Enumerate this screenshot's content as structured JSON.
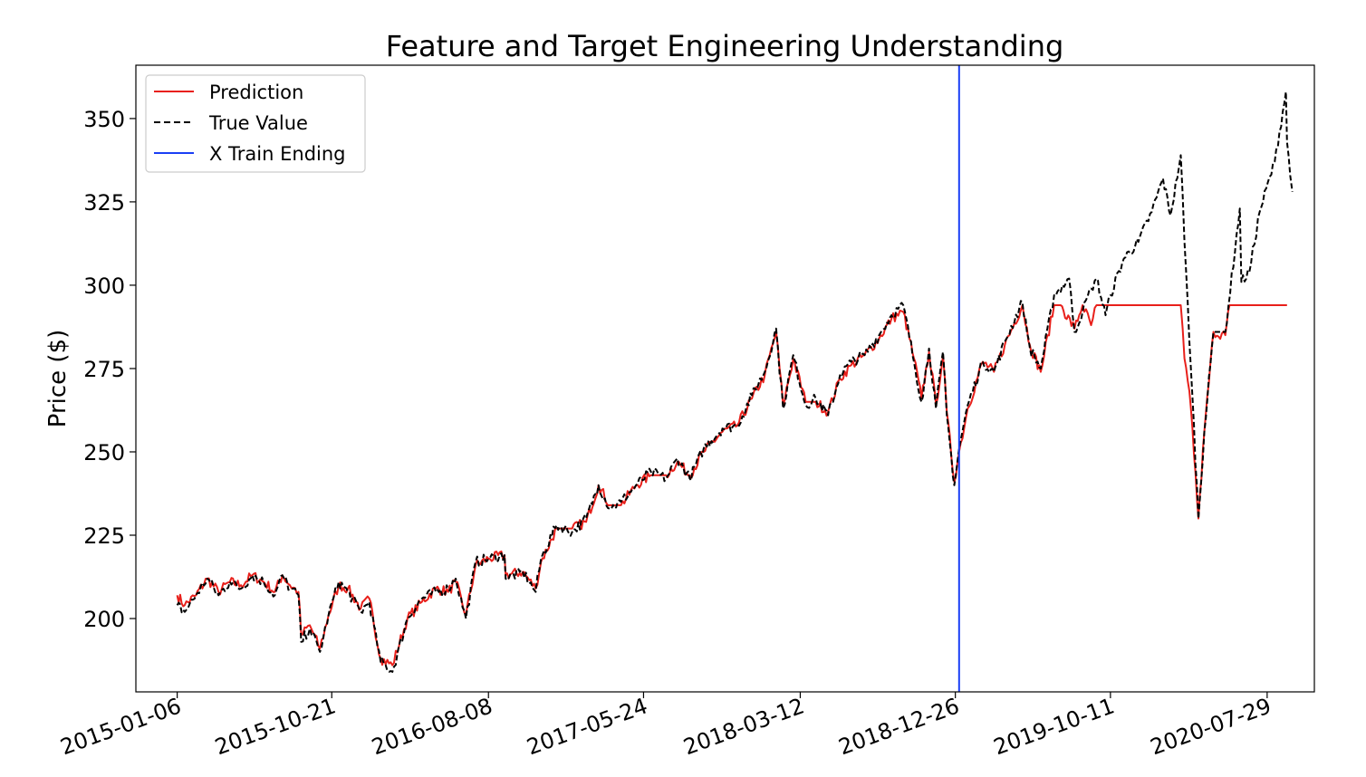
{
  "chart_data": {
    "type": "line",
    "title": "Feature and Target Engineering Understanding",
    "xlabel": "",
    "ylabel": "Price ($)",
    "x_start": "2015-01-06",
    "x_end": "2020-09-04",
    "xlim": [
      "2014-10-21",
      "2020-10-25"
    ],
    "ylim": [
      178,
      366
    ],
    "x_ticks": [
      "2015-01-06",
      "2015-10-21",
      "2016-08-08",
      "2017-05-24",
      "2018-03-12",
      "2018-12-26",
      "2019-10-11",
      "2020-07-29"
    ],
    "y_ticks": [
      200,
      225,
      250,
      275,
      300,
      325,
      350
    ],
    "grid": false,
    "legend_position": "upper-left",
    "train_end_date": "2019-01-02",
    "series": [
      {
        "name": "Prediction",
        "color": "#e8201b",
        "style": "solid",
        "points": [
          [
            "2015-01-06",
            207
          ],
          [
            "2015-01-20",
            204
          ],
          [
            "2015-02-10",
            207
          ],
          [
            "2015-03-03",
            212
          ],
          [
            "2015-03-24",
            208
          ],
          [
            "2015-04-14",
            211
          ],
          [
            "2015-05-05",
            210
          ],
          [
            "2015-05-26",
            213
          ],
          [
            "2015-06-16",
            211
          ],
          [
            "2015-07-07",
            208
          ],
          [
            "2015-07-21",
            213
          ],
          [
            "2015-08-04",
            210
          ],
          [
            "2015-08-20",
            208
          ],
          [
            "2015-08-25",
            195
          ],
          [
            "2015-09-10",
            198
          ],
          [
            "2015-09-29",
            191
          ],
          [
            "2015-10-15",
            201
          ],
          [
            "2015-11-03",
            210
          ],
          [
            "2015-11-20",
            209
          ],
          [
            "2015-12-14",
            203
          ],
          [
            "2015-12-30",
            206
          ],
          [
            "2016-01-20",
            188
          ],
          [
            "2016-02-11",
            186
          ],
          [
            "2016-03-10",
            200
          ],
          [
            "2016-04-06",
            205
          ],
          [
            "2016-05-02",
            209
          ],
          [
            "2016-05-25",
            208
          ],
          [
            "2016-06-08",
            211
          ],
          [
            "2016-06-27",
            201
          ],
          [
            "2016-07-15",
            216
          ],
          [
            "2016-08-08",
            218
          ],
          [
            "2016-09-07",
            219
          ],
          [
            "2016-09-09",
            213
          ],
          [
            "2016-10-11",
            214
          ],
          [
            "2016-11-04",
            209
          ],
          [
            "2016-11-14",
            217
          ],
          [
            "2016-12-13",
            227
          ],
          [
            "2017-01-11",
            227
          ],
          [
            "2017-02-06",
            229
          ],
          [
            "2017-03-01",
            240
          ],
          [
            "2017-03-22",
            234
          ],
          [
            "2017-04-12",
            234
          ],
          [
            "2017-05-10",
            240
          ],
          [
            "2017-06-07",
            243
          ],
          [
            "2017-07-05",
            243
          ],
          [
            "2017-07-26",
            247
          ],
          [
            "2017-08-18",
            243
          ],
          [
            "2017-09-13",
            250
          ],
          [
            "2017-10-18",
            256
          ],
          [
            "2017-11-15",
            258
          ],
          [
            "2017-12-12",
            266
          ],
          [
            "2018-01-05",
            273
          ],
          [
            "2018-01-26",
            286
          ],
          [
            "2018-02-08",
            264
          ],
          [
            "2018-02-27",
            278
          ],
          [
            "2018-03-22",
            265
          ],
          [
            "2018-04-10",
            265
          ],
          [
            "2018-05-03",
            262
          ],
          [
            "2018-05-25",
            272
          ],
          [
            "2018-06-15",
            276
          ],
          [
            "2018-07-10",
            279
          ],
          [
            "2018-08-06",
            284
          ],
          [
            "2018-08-29",
            290
          ],
          [
            "2018-09-20",
            292
          ],
          [
            "2018-10-10",
            278
          ],
          [
            "2018-10-24",
            266
          ],
          [
            "2018-11-07",
            280
          ],
          [
            "2018-11-20",
            264
          ],
          [
            "2018-12-03",
            279
          ],
          [
            "2018-12-10",
            262
          ],
          [
            "2018-12-24",
            241
          ],
          [
            "2019-01-02",
            250
          ],
          [
            "2019-01-18",
            263
          ],
          [
            "2019-02-15",
            277
          ],
          [
            "2019-03-08",
            274
          ],
          [
            "2019-03-28",
            282
          ],
          [
            "2019-04-30",
            294
          ],
          [
            "2019-05-14",
            282
          ],
          [
            "2019-06-03",
            274
          ],
          [
            "2019-06-28",
            294
          ],
          [
            "2019-07-10",
            294
          ],
          [
            "2019-08-05",
            287
          ],
          [
            "2019-08-20",
            294
          ],
          [
            "2019-09-05",
            288
          ],
          [
            "2019-09-15",
            294
          ],
          [
            "2020-02-19",
            294
          ],
          [
            "2020-02-26",
            278
          ],
          [
            "2020-03-09",
            263
          ],
          [
            "2020-03-23",
            230
          ],
          [
            "2020-04-03",
            256
          ],
          [
            "2020-04-20",
            286
          ],
          [
            "2020-05-12",
            285
          ],
          [
            "2020-05-20",
            294
          ],
          [
            "2020-09-04",
            294
          ]
        ]
      },
      {
        "name": "True Value",
        "color": "#000000",
        "style": "dashed",
        "points": [
          [
            "2015-01-06",
            204
          ],
          [
            "2015-01-20",
            202
          ],
          [
            "2015-02-10",
            207
          ],
          [
            "2015-03-03",
            212
          ],
          [
            "2015-03-24",
            207
          ],
          [
            "2015-04-14",
            211
          ],
          [
            "2015-05-05",
            209
          ],
          [
            "2015-05-26",
            213
          ],
          [
            "2015-06-16",
            211
          ],
          [
            "2015-07-07",
            207
          ],
          [
            "2015-07-21",
            213
          ],
          [
            "2015-08-04",
            209
          ],
          [
            "2015-08-20",
            207
          ],
          [
            "2015-08-25",
            193
          ],
          [
            "2015-09-10",
            197
          ],
          [
            "2015-09-29",
            190
          ],
          [
            "2015-10-15",
            201
          ],
          [
            "2015-11-03",
            211
          ],
          [
            "2015-11-20",
            208
          ],
          [
            "2015-12-14",
            202
          ],
          [
            "2015-12-30",
            205
          ],
          [
            "2016-01-20",
            187
          ],
          [
            "2016-02-11",
            184
          ],
          [
            "2016-03-10",
            200
          ],
          [
            "2016-04-06",
            206
          ],
          [
            "2016-05-02",
            208
          ],
          [
            "2016-05-25",
            209
          ],
          [
            "2016-06-08",
            212
          ],
          [
            "2016-06-27",
            200
          ],
          [
            "2016-07-15",
            217
          ],
          [
            "2016-08-08",
            218
          ],
          [
            "2016-09-07",
            219
          ],
          [
            "2016-09-09",
            212
          ],
          [
            "2016-10-11",
            214
          ],
          [
            "2016-11-04",
            208
          ],
          [
            "2016-11-14",
            218
          ],
          [
            "2016-12-13",
            228
          ],
          [
            "2017-01-11",
            226
          ],
          [
            "2017-02-06",
            230
          ],
          [
            "2017-03-01",
            240
          ],
          [
            "2017-03-22",
            233
          ],
          [
            "2017-04-12",
            235
          ],
          [
            "2017-05-10",
            240
          ],
          [
            "2017-06-07",
            244
          ],
          [
            "2017-07-05",
            242
          ],
          [
            "2017-07-26",
            248
          ],
          [
            "2017-08-18",
            242
          ],
          [
            "2017-09-13",
            251
          ],
          [
            "2017-10-18",
            257
          ],
          [
            "2017-11-15",
            258
          ],
          [
            "2017-12-12",
            267
          ],
          [
            "2018-01-05",
            274
          ],
          [
            "2018-01-26",
            287
          ],
          [
            "2018-02-08",
            263
          ],
          [
            "2018-02-27",
            279
          ],
          [
            "2018-03-22",
            264
          ],
          [
            "2018-04-10",
            266
          ],
          [
            "2018-05-03",
            261
          ],
          [
            "2018-05-25",
            273
          ],
          [
            "2018-06-15",
            277
          ],
          [
            "2018-07-10",
            279
          ],
          [
            "2018-08-06",
            285
          ],
          [
            "2018-08-29",
            291
          ],
          [
            "2018-09-20",
            294
          ],
          [
            "2018-10-10",
            277
          ],
          [
            "2018-10-24",
            265
          ],
          [
            "2018-11-07",
            281
          ],
          [
            "2018-11-20",
            263
          ],
          [
            "2018-12-03",
            280
          ],
          [
            "2018-12-10",
            261
          ],
          [
            "2018-12-24",
            240
          ],
          [
            "2019-01-02",
            251
          ],
          [
            "2019-01-18",
            264
          ],
          [
            "2019-02-15",
            277
          ],
          [
            "2019-03-08",
            274
          ],
          [
            "2019-03-28",
            283
          ],
          [
            "2019-04-30",
            295
          ],
          [
            "2019-05-14",
            281
          ],
          [
            "2019-06-03",
            275
          ],
          [
            "2019-06-28",
            297
          ],
          [
            "2019-07-26",
            302
          ],
          [
            "2019-08-05",
            286
          ],
          [
            "2019-08-20",
            292
          ],
          [
            "2019-09-05",
            299
          ],
          [
            "2019-09-15",
            302
          ],
          [
            "2019-10-02",
            291
          ],
          [
            "2019-10-11",
            297
          ],
          [
            "2019-11-05",
            308
          ],
          [
            "2019-12-02",
            313
          ],
          [
            "2019-12-27",
            322
          ],
          [
            "2020-01-17",
            332
          ],
          [
            "2020-01-31",
            321
          ],
          [
            "2020-02-19",
            339
          ],
          [
            "2020-02-26",
            313
          ],
          [
            "2020-03-09",
            275
          ],
          [
            "2020-03-23",
            230
          ],
          [
            "2020-04-03",
            256
          ],
          [
            "2020-04-20",
            286
          ],
          [
            "2020-05-12",
            286
          ],
          [
            "2020-06-08",
            323
          ],
          [
            "2020-06-11",
            301
          ],
          [
            "2020-06-26",
            304
          ],
          [
            "2020-07-15",
            322
          ],
          [
            "2020-08-12",
            337
          ],
          [
            "2020-09-02",
            358
          ],
          [
            "2020-09-04",
            343
          ],
          [
            "2020-09-10",
            333
          ],
          [
            "2020-09-14",
            328
          ]
        ]
      }
    ],
    "vertical_line": {
      "name": "X Train Ending",
      "color": "#1a3ff5",
      "date": "2019-01-02"
    }
  }
}
